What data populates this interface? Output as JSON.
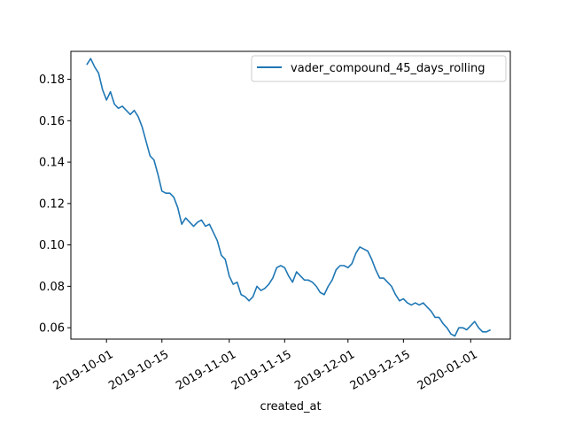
{
  "chart_data": {
    "type": "line",
    "title": "",
    "xlabel": "created_at",
    "ylabel": "",
    "x_ticks": [
      "2019-10-01",
      "2019-10-15",
      "2019-11-01",
      "2019-11-15",
      "2019-12-01",
      "2019-12-15",
      "2020-01-01"
    ],
    "y_ticks": [
      "0.06",
      "0.08",
      "0.10",
      "0.12",
      "0.14",
      "0.16",
      "0.18"
    ],
    "xlim": [
      "2019-09-22",
      "2020-01-11"
    ],
    "ylim": [
      0.0545,
      0.1935
    ],
    "grid": false,
    "legend_position": "upper right",
    "series": [
      {
        "name": "vader_compound_45_days_rolling",
        "color": "#1f77b4",
        "points": [
          [
            "2019-09-26",
            0.187
          ],
          [
            "2019-09-27",
            0.19
          ],
          [
            "2019-09-28",
            0.186
          ],
          [
            "2019-09-29",
            0.183
          ],
          [
            "2019-09-30",
            0.175
          ],
          [
            "2019-10-01",
            0.17
          ],
          [
            "2019-10-02",
            0.174
          ],
          [
            "2019-10-03",
            0.168
          ],
          [
            "2019-10-04",
            0.166
          ],
          [
            "2019-10-05",
            0.167
          ],
          [
            "2019-10-06",
            0.165
          ],
          [
            "2019-10-07",
            0.163
          ],
          [
            "2019-10-08",
            0.165
          ],
          [
            "2019-10-09",
            0.162
          ],
          [
            "2019-10-10",
            0.157
          ],
          [
            "2019-10-11",
            0.15
          ],
          [
            "2019-10-12",
            0.143
          ],
          [
            "2019-10-13",
            0.141
          ],
          [
            "2019-10-14",
            0.134
          ],
          [
            "2019-10-15",
            0.126
          ],
          [
            "2019-10-16",
            0.125
          ],
          [
            "2019-10-17",
            0.125
          ],
          [
            "2019-10-18",
            0.123
          ],
          [
            "2019-10-19",
            0.118
          ],
          [
            "2019-10-20",
            0.11
          ],
          [
            "2019-10-21",
            0.113
          ],
          [
            "2019-10-22",
            0.111
          ],
          [
            "2019-10-23",
            0.109
          ],
          [
            "2019-10-24",
            0.111
          ],
          [
            "2019-10-25",
            0.112
          ],
          [
            "2019-10-26",
            0.109
          ],
          [
            "2019-10-27",
            0.11
          ],
          [
            "2019-10-28",
            0.106
          ],
          [
            "2019-10-29",
            0.102
          ],
          [
            "2019-10-30",
            0.095
          ],
          [
            "2019-10-31",
            0.093
          ],
          [
            "2019-11-01",
            0.085
          ],
          [
            "2019-11-02",
            0.081
          ],
          [
            "2019-11-03",
            0.082
          ],
          [
            "2019-11-04",
            0.076
          ],
          [
            "2019-11-05",
            0.075
          ],
          [
            "2019-11-06",
            0.073
          ],
          [
            "2019-11-07",
            0.075
          ],
          [
            "2019-11-08",
            0.08
          ],
          [
            "2019-11-09",
            0.078
          ],
          [
            "2019-11-10",
            0.079
          ],
          [
            "2019-11-11",
            0.081
          ],
          [
            "2019-11-12",
            0.084
          ],
          [
            "2019-11-13",
            0.089
          ],
          [
            "2019-11-14",
            0.09
          ],
          [
            "2019-11-15",
            0.089
          ],
          [
            "2019-11-16",
            0.085
          ],
          [
            "2019-11-17",
            0.082
          ],
          [
            "2019-11-18",
            0.087
          ],
          [
            "2019-11-19",
            0.085
          ],
          [
            "2019-11-20",
            0.083
          ],
          [
            "2019-11-21",
            0.083
          ],
          [
            "2019-11-22",
            0.082
          ],
          [
            "2019-11-23",
            0.08
          ],
          [
            "2019-11-24",
            0.077
          ],
          [
            "2019-11-25",
            0.076
          ],
          [
            "2019-11-26",
            0.08
          ],
          [
            "2019-11-27",
            0.083
          ],
          [
            "2019-11-28",
            0.088
          ],
          [
            "2019-11-29",
            0.09
          ],
          [
            "2019-11-30",
            0.09
          ],
          [
            "2019-12-01",
            0.089
          ],
          [
            "2019-12-02",
            0.091
          ],
          [
            "2019-12-03",
            0.096
          ],
          [
            "2019-12-04",
            0.099
          ],
          [
            "2019-12-05",
            0.098
          ],
          [
            "2019-12-06",
            0.097
          ],
          [
            "2019-12-07",
            0.093
          ],
          [
            "2019-12-08",
            0.088
          ],
          [
            "2019-12-09",
            0.084
          ],
          [
            "2019-12-10",
            0.084
          ],
          [
            "2019-12-11",
            0.082
          ],
          [
            "2019-12-12",
            0.08
          ],
          [
            "2019-12-13",
            0.076
          ],
          [
            "2019-12-14",
            0.073
          ],
          [
            "2019-12-15",
            0.074
          ],
          [
            "2019-12-16",
            0.072
          ],
          [
            "2019-12-17",
            0.071
          ],
          [
            "2019-12-18",
            0.072
          ],
          [
            "2019-12-19",
            0.071
          ],
          [
            "2019-12-20",
            0.072
          ],
          [
            "2019-12-21",
            0.07
          ],
          [
            "2019-12-22",
            0.068
          ],
          [
            "2019-12-23",
            0.065
          ],
          [
            "2019-12-24",
            0.065
          ],
          [
            "2019-12-25",
            0.062
          ],
          [
            "2019-12-26",
            0.06
          ],
          [
            "2019-12-27",
            0.057
          ],
          [
            "2019-12-28",
            0.056
          ],
          [
            "2019-12-29",
            0.06
          ],
          [
            "2019-12-30",
            0.06
          ],
          [
            "2019-12-31",
            0.059
          ],
          [
            "2020-01-01",
            0.061
          ],
          [
            "2020-01-02",
            0.063
          ],
          [
            "2020-01-03",
            0.06
          ],
          [
            "2020-01-04",
            0.058
          ],
          [
            "2020-01-05",
            0.058
          ],
          [
            "2020-01-06",
            0.059
          ]
        ]
      }
    ]
  }
}
